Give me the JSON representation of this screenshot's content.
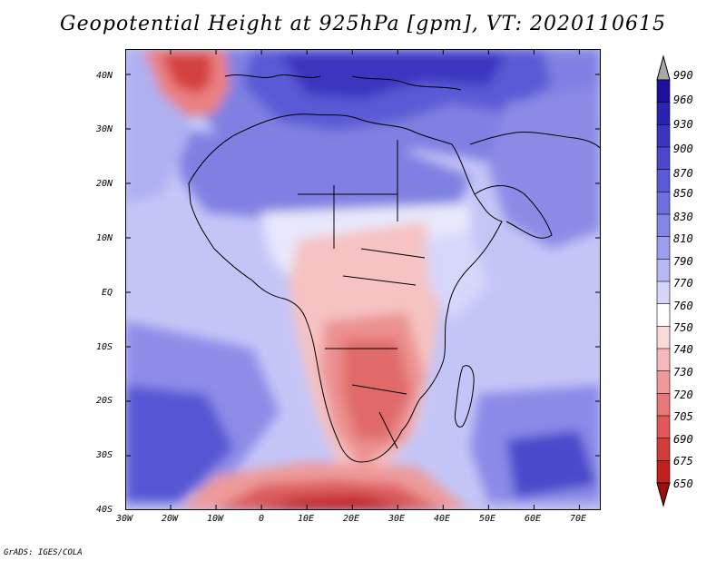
{
  "title": "Geopotential Height at 925hPa [gpm], VT: 2020110615",
  "credit": "GrADS: IGES/COLA",
  "map": {
    "region": "Africa",
    "lon_ticks": [
      "30W",
      "20W",
      "10W",
      "0",
      "10E",
      "20E",
      "30E",
      "40E",
      "50E",
      "60E",
      "70E"
    ],
    "lat_ticks": [
      "40N",
      "30N",
      "20N",
      "10N",
      "EQ",
      "10S",
      "20S",
      "30S",
      "40S"
    ],
    "lon_range": [
      -30,
      75
    ],
    "lat_range": [
      -40,
      45
    ]
  },
  "colorbar": {
    "levels": [
      "990",
      "960",
      "930",
      "900",
      "870",
      "850",
      "830",
      "810",
      "790",
      "770",
      "760",
      "750",
      "740",
      "730",
      "720",
      "705",
      "690",
      "675",
      "650"
    ],
    "colors": [
      "#a9a9a9",
      "#1e0fa0",
      "#2a22b0",
      "#3a34bf",
      "#4a48cc",
      "#5a5ad6",
      "#6f6fdf",
      "#8585e6",
      "#9c9ded",
      "#b7b8f4",
      "#d5d6fa",
      "#ffffff",
      "#fbdada",
      "#f6b9b9",
      "#f09999",
      "#e97777",
      "#e05858",
      "#d23b3b",
      "#c21f1f",
      "#a00f0f"
    ]
  },
  "colors": {
    "high_max": "#2a22b0",
    "high": "#7575e0",
    "mid_high": "#b7b8f4",
    "near_760": "#d5d6fa",
    "neutral": "#ffffff",
    "low": "#f3b2b2",
    "lower": "#e27070",
    "lowest": "#c21f1f"
  }
}
